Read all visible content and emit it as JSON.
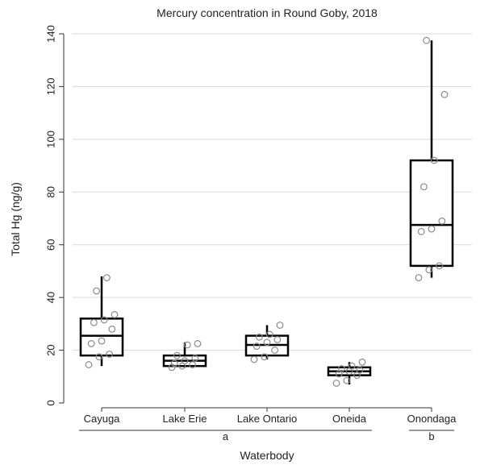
{
  "chart_data": {
    "type": "box",
    "title": "Mercury concentration in Round Goby, 2018",
    "xlabel": "Waterbody",
    "ylabel": "Total Hg (ng/g)",
    "ylim": [
      0,
      140
    ],
    "yticks": [
      0,
      20,
      40,
      60,
      80,
      100,
      120,
      140
    ],
    "grid": "horizontal",
    "categories": [
      "Cayuga",
      "Lake Erie",
      "Lake Ontario",
      "Oneida",
      "Onondaga"
    ],
    "boxes": [
      {
        "min": 14,
        "q1": 18,
        "median": 25.5,
        "q3": 32,
        "max": 48
      },
      {
        "min": 13.5,
        "q1": 14,
        "median": 16,
        "q3": 18,
        "max": 23
      },
      {
        "min": 16.5,
        "q1": 18,
        "median": 22,
        "q3": 25.5,
        "max": 29.5
      },
      {
        "min": 7,
        "q1": 10.5,
        "median": 12,
        "q3": 13.5,
        "max": 15.5
      },
      {
        "min": 47.5,
        "q1": 52,
        "median": 67.5,
        "q3": 92,
        "max": 137.5
      }
    ],
    "points": [
      [
        14.5,
        17.5,
        18.5,
        22.5,
        23.5,
        28,
        30.5,
        31.5,
        33.5,
        42.5,
        47.5
      ],
      [
        13.5,
        14,
        14.5,
        15,
        16,
        17,
        18,
        22,
        22.5
      ],
      [
        16.5,
        17.5,
        20,
        21.5,
        23,
        24,
        25,
        26,
        29.5
      ],
      [
        7.5,
        8.5,
        10.5,
        11,
        12,
        12.5,
        13,
        14,
        15.5
      ],
      [
        47.5,
        50.5,
        52,
        65,
        66,
        69,
        82,
        92,
        117,
        137.5
      ]
    ],
    "groups": [
      {
        "label": "a",
        "from": 0,
        "to": 3
      },
      {
        "label": "b",
        "from": 4,
        "to": 4
      }
    ]
  }
}
